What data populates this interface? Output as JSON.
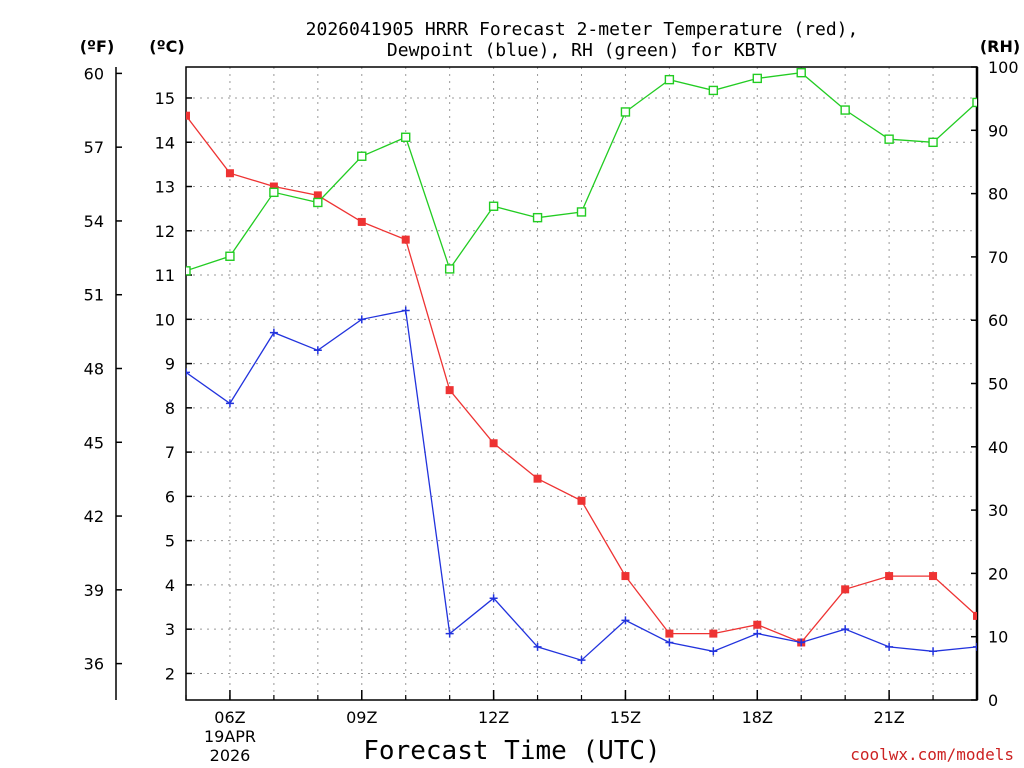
{
  "chart_data": {
    "type": "line",
    "title_line1": "2026041905 HRRR Forecast 2-meter Temperature (red),",
    "title_line2": "Dewpoint (blue), RH (green) for KBTV",
    "xlabel": "Forecast Time (UTC)",
    "credit": "coolwx.com/models",
    "date_labels": [
      "19APR",
      "2026"
    ],
    "x_hours": [
      5,
      6,
      7,
      8,
      9,
      10,
      11,
      12,
      13,
      14,
      15,
      16,
      17,
      18,
      19,
      20,
      21,
      22,
      23
    ],
    "x_ticks": [
      {
        "hour": 6,
        "label": "06Z"
      },
      {
        "hour": 9,
        "label": "09Z"
      },
      {
        "hour": 12,
        "label": "12Z"
      },
      {
        "hour": 15,
        "label": "15Z"
      },
      {
        "hour": 18,
        "label": "18Z"
      },
      {
        "hour": 21,
        "label": "21Z"
      }
    ],
    "xlim": [
      5,
      23
    ],
    "celsius_axis": {
      "unit_label": "(ºC)",
      "ylim": [
        1.4,
        15.7
      ],
      "ticks": [
        2,
        3,
        4,
        5,
        6,
        7,
        8,
        9,
        10,
        11,
        12,
        13,
        14,
        15
      ]
    },
    "fahrenheit_axis": {
      "unit_label": "(ºF)",
      "ticks": [
        36,
        39,
        42,
        45,
        48,
        51,
        54,
        57,
        60
      ]
    },
    "rh_axis": {
      "unit_label": "(RH)",
      "ylim": [
        0,
        100
      ],
      "ticks": [
        0,
        10,
        20,
        30,
        40,
        50,
        60,
        70,
        80,
        90,
        100
      ]
    },
    "series": [
      {
        "name": "2-meter Temperature",
        "axis": "celsius",
        "color": "#ee3333",
        "marker": "filled-square",
        "values": [
          14.6,
          13.3,
          13.0,
          12.8,
          12.2,
          11.8,
          8.4,
          7.2,
          6.4,
          5.9,
          4.2,
          2.9,
          2.9,
          3.1,
          2.7,
          3.9,
          4.2,
          4.2,
          3.3
        ]
      },
      {
        "name": "Dewpoint",
        "axis": "celsius",
        "color": "#2233dd",
        "marker": "plus",
        "values": [
          8.8,
          8.1,
          9.7,
          9.3,
          10.0,
          10.2,
          2.9,
          3.7,
          2.6,
          2.3,
          3.2,
          2.7,
          2.5,
          2.9,
          2.7,
          3.0,
          2.6,
          2.5,
          2.6
        ]
      },
      {
        "name": "RH",
        "axis": "rh",
        "color": "#22cc22",
        "marker": "open-square",
        "values": [
          67.8,
          70.1,
          80.2,
          78.6,
          85.9,
          88.9,
          68.1,
          78.0,
          76.2,
          77.1,
          92.9,
          98.0,
          96.3,
          98.2,
          99.1,
          93.2,
          88.6,
          88.1,
          94.4
        ]
      }
    ]
  }
}
